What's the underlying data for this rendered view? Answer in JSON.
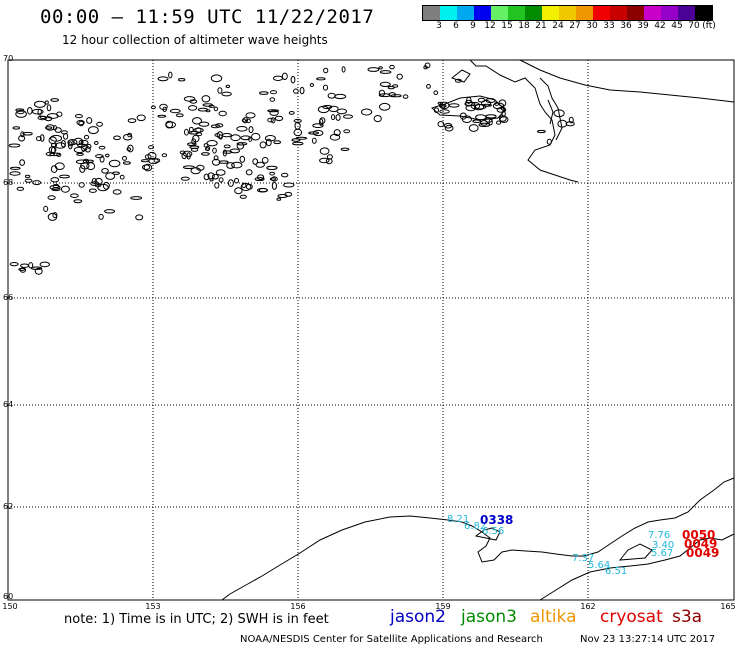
{
  "header": {
    "title": "00:00 – 11:59 UTC 11/22/2017",
    "subtitle": "12 hour collection of altimeter wave heights"
  },
  "color_scale": {
    "swatches": [
      "#7f7f7f",
      "#00f0f0",
      "#00a8f0",
      "#0000f0",
      "#66f066",
      "#22c422",
      "#008c00",
      "#f0f000",
      "#f0c800",
      "#f09600",
      "#f00000",
      "#c80000",
      "#8c0000",
      "#c800c8",
      "#9600c8",
      "#4b0096",
      "#000000"
    ],
    "labels": [
      "3",
      "6",
      "9",
      "12",
      "15",
      "18",
      "21",
      "24",
      "27",
      "30",
      "33",
      "36",
      "39",
      "42",
      "45",
      "70",
      "(ft)"
    ]
  },
  "axes": {
    "lat_labels": [
      "70",
      "68",
      "66",
      "64",
      "62",
      "60"
    ],
    "lon_labels": [
      "150",
      "153",
      "156",
      "159",
      "162",
      "165"
    ]
  },
  "observations": {
    "swh_values": [
      "8.21",
      "6.82",
      "6.56",
      "7.76",
      "3.40",
      "5.67",
      "7.37",
      "5.64",
      "6.51"
    ],
    "pass_labels": [
      "0338",
      "0050",
      "0049",
      "0049"
    ],
    "pass_colors": [
      "#0000c8",
      "#e00000",
      "#e00000",
      "#e00000"
    ]
  },
  "legend": {
    "note": "note: 1) Time is in UTC; 2) SWH is in feet",
    "satellites": [
      {
        "name": "jason2",
        "color": "#0000c8"
      },
      {
        "name": "jason3",
        "color": "#008c00"
      },
      {
        "name": "altika",
        "color": "#f09600"
      },
      {
        "name": "cryosat",
        "color": "#e00000"
      },
      {
        "name": "s3a",
        "color": "#8c0000"
      }
    ]
  },
  "footer": {
    "credit": "NOAA/NESDIS Center for Satellite Applications and Research",
    "timestamp": "Nov 23 13:27:14 UTC 2017"
  }
}
